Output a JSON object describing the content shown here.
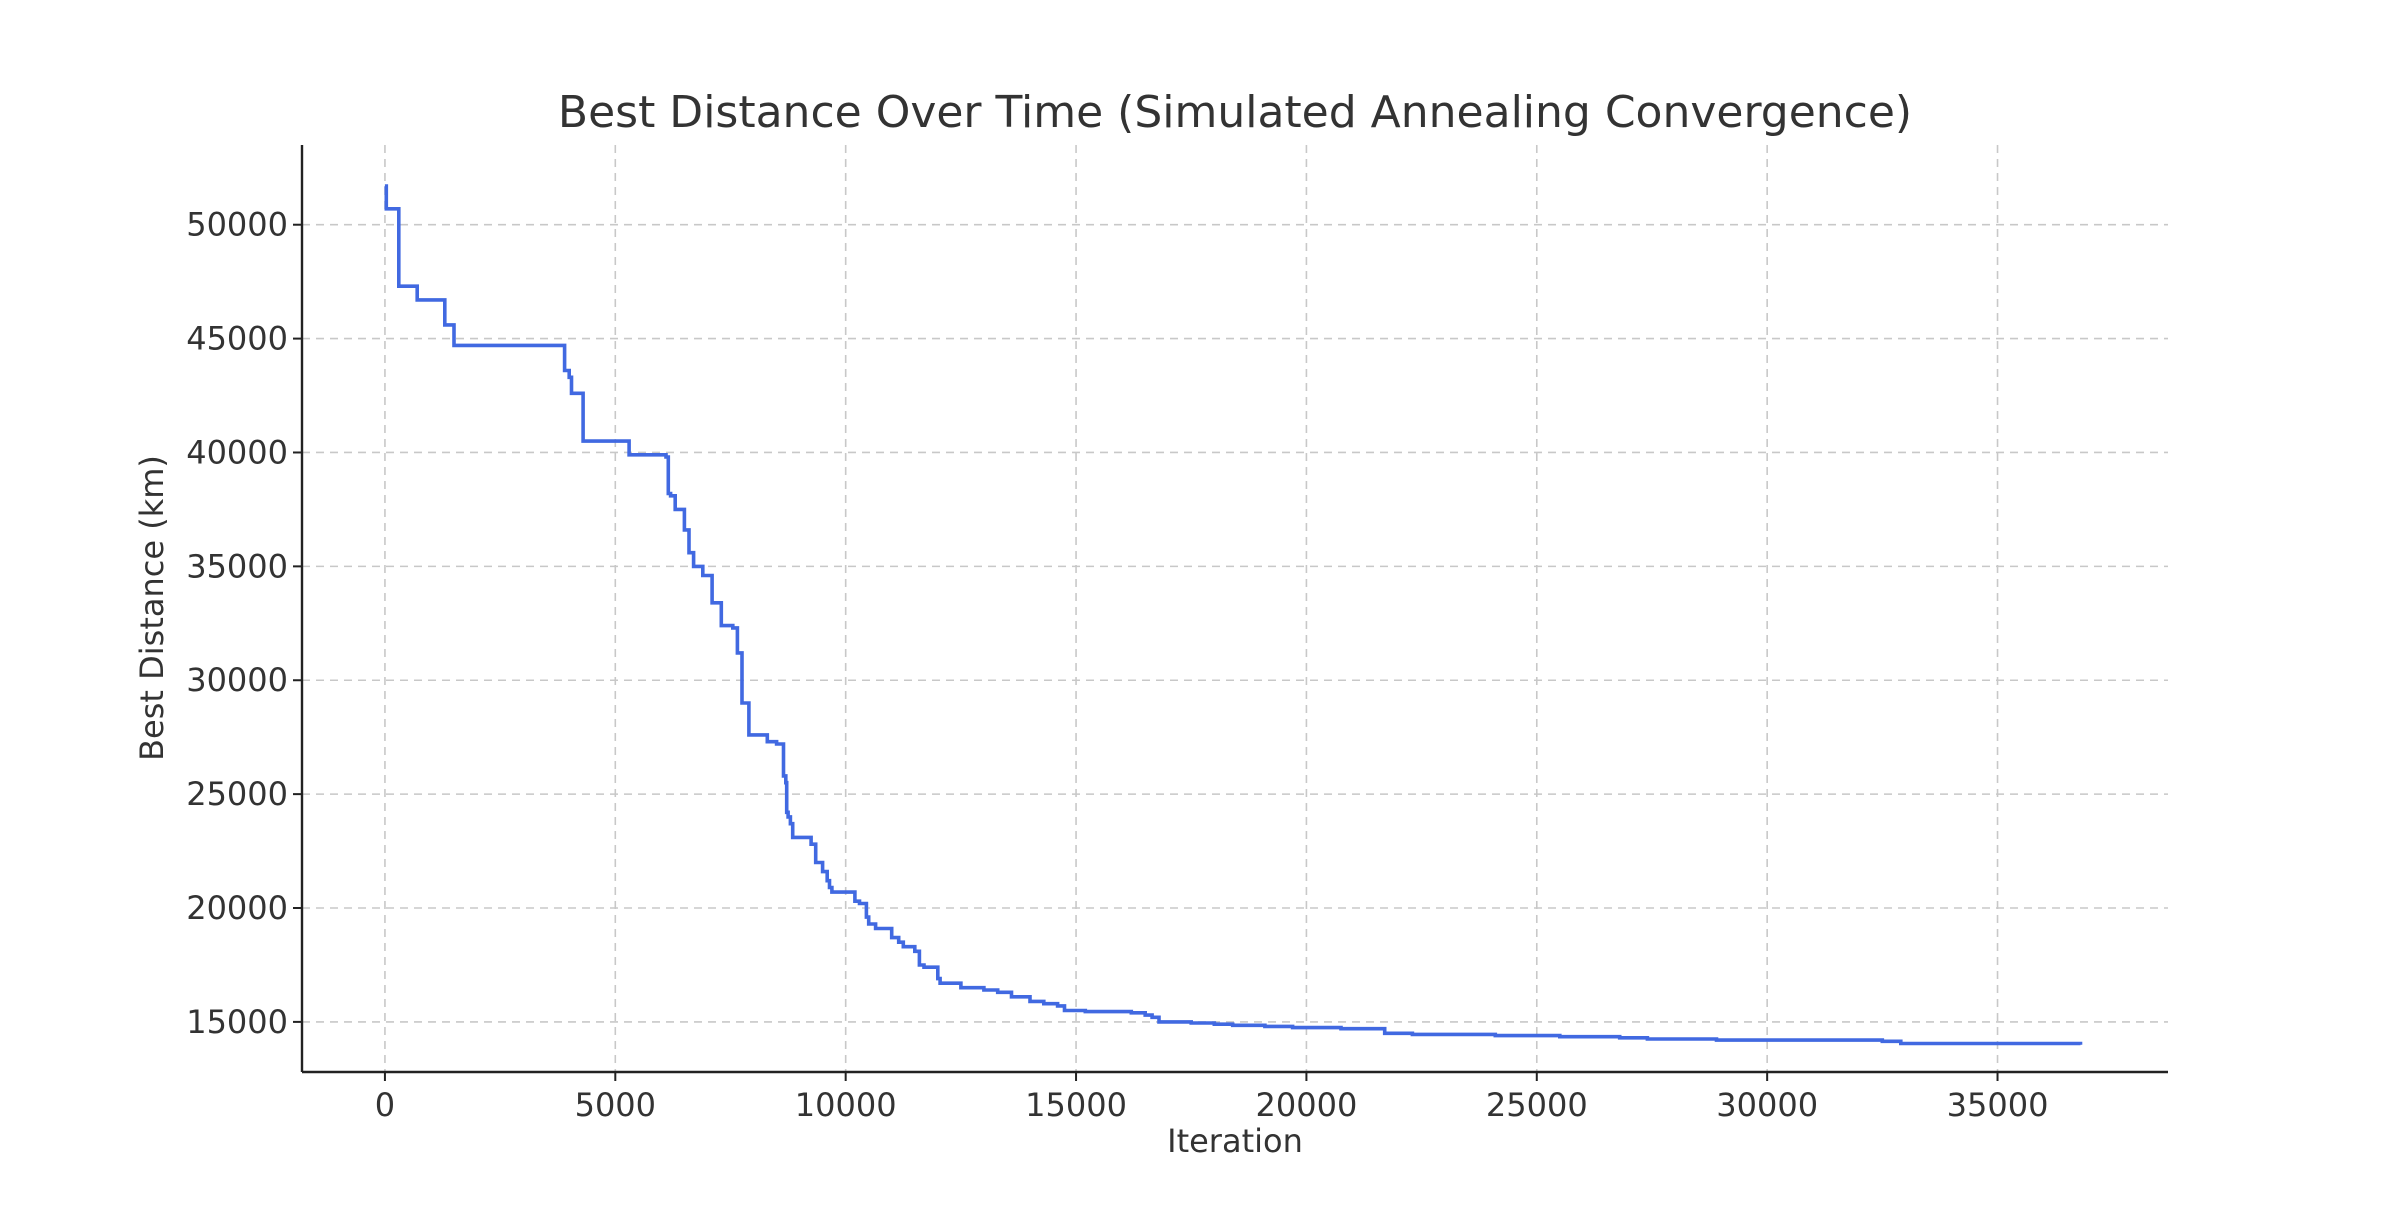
{
  "chart_data": {
    "type": "line",
    "title": "Best Distance Over Time (Simulated Annealing Convergence)",
    "xlabel": "Iteration",
    "ylabel": "Best Distance (km)",
    "xlim": [
      -1800,
      38700
    ],
    "ylim": [
      12800,
      53500
    ],
    "xticks": [
      0,
      5000,
      10000,
      15000,
      20000,
      25000,
      30000,
      35000
    ],
    "yticks": [
      15000,
      20000,
      25000,
      30000,
      35000,
      40000,
      45000,
      50000
    ],
    "grid": true,
    "step": true,
    "color": "#4169e1",
    "series": [
      {
        "x": [
          0,
          30,
          300,
          330,
          700,
          1300,
          1500,
          3800,
          3900,
          4000,
          4050,
          4300,
          5300,
          5350,
          6100,
          6150,
          6200,
          6300,
          6500,
          6600,
          6700,
          6850,
          6900,
          7100,
          7300,
          7550,
          7650,
          7750,
          7850,
          7900,
          8000,
          8300,
          8500,
          8650,
          8700,
          8720,
          8750,
          8800,
          8850,
          8950,
          9250,
          9350,
          9400,
          9500,
          9600,
          9650,
          9700,
          9750,
          10200,
          10300,
          10450,
          10500,
          10650,
          11000,
          11150,
          11250,
          11500,
          11600,
          11700,
          12000,
          12050,
          12150,
          12500,
          13000,
          13300,
          13600,
          14000,
          14300,
          14600,
          14750,
          15200,
          16200,
          16500,
          16650,
          16800,
          17500,
          18000,
          18400,
          19100,
          19700,
          20750,
          21700,
          22300,
          24100,
          25500,
          26800,
          27400,
          28900,
          32500,
          32900,
          36800
        ],
        "y": [
          51700,
          50700,
          47300,
          47300,
          46700,
          45600,
          44700,
          44700,
          43600,
          43300,
          42600,
          40500,
          39900,
          39900,
          39800,
          38200,
          38100,
          37500,
          36600,
          35600,
          35000,
          35000,
          34600,
          33400,
          32400,
          32300,
          31200,
          29000,
          29000,
          27600,
          27600,
          27300,
          27200,
          25800,
          25500,
          24200,
          24000,
          23700,
          23100,
          23100,
          22800,
          22000,
          22000,
          21600,
          21200,
          20900,
          20700,
          20700,
          20300,
          20200,
          19600,
          19300,
          19100,
          18700,
          18500,
          18300,
          18100,
          17500,
          17400,
          16900,
          16700,
          16700,
          16500,
          16400,
          16300,
          16100,
          15900,
          15800,
          15700,
          15500,
          15450,
          15400,
          15300,
          15200,
          15000,
          14950,
          14900,
          14850,
          14800,
          14750,
          14700,
          14500,
          14450,
          14400,
          14350,
          14300,
          14250,
          14200,
          14150,
          14050,
          14000
        ]
      }
    ]
  }
}
